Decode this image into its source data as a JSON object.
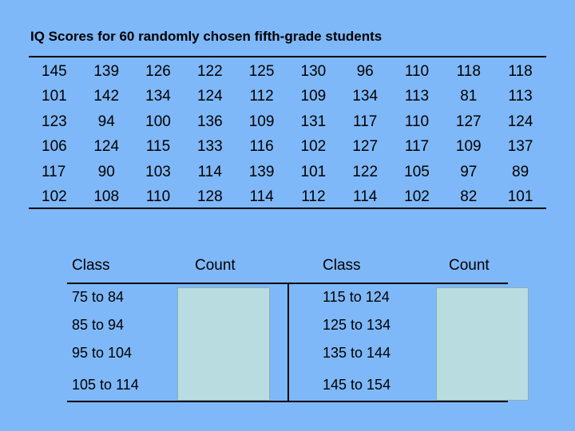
{
  "title": "IQ Scores for 60 randomly chosen fifth-grade students",
  "scores": [
    [
      "145",
      "139",
      "126",
      "122",
      "125",
      "130",
      "96",
      "110",
      "118",
      "118"
    ],
    [
      "101",
      "142",
      "134",
      "124",
      "112",
      "109",
      "134",
      "113",
      "81",
      "113"
    ],
    [
      "123",
      "94",
      "100",
      "136",
      "109",
      "131",
      "117",
      "110",
      "127",
      "124"
    ],
    [
      "106",
      "124",
      "115",
      "133",
      "116",
      "102",
      "127",
      "117",
      "109",
      "137"
    ],
    [
      "117",
      "90",
      "103",
      "114",
      "139",
      "101",
      "122",
      "105",
      "97",
      "89"
    ],
    [
      "102",
      "108",
      "110",
      "128",
      "114",
      "112",
      "114",
      "102",
      "82",
      "101"
    ]
  ],
  "frequency_table": {
    "left": {
      "class_header": "Class",
      "count_header": "Count",
      "classes": [
        "75 to 84",
        "85 to 94",
        "95 to 104",
        "105 to 114"
      ]
    },
    "right": {
      "class_header": "Class",
      "count_header": "Count",
      "classes": [
        "115 to 124",
        "125 to 134",
        "135 to 144",
        "145 to 154"
      ]
    }
  },
  "colors": {
    "background": "#7fb8f8",
    "count_box": "#b8dce0"
  }
}
